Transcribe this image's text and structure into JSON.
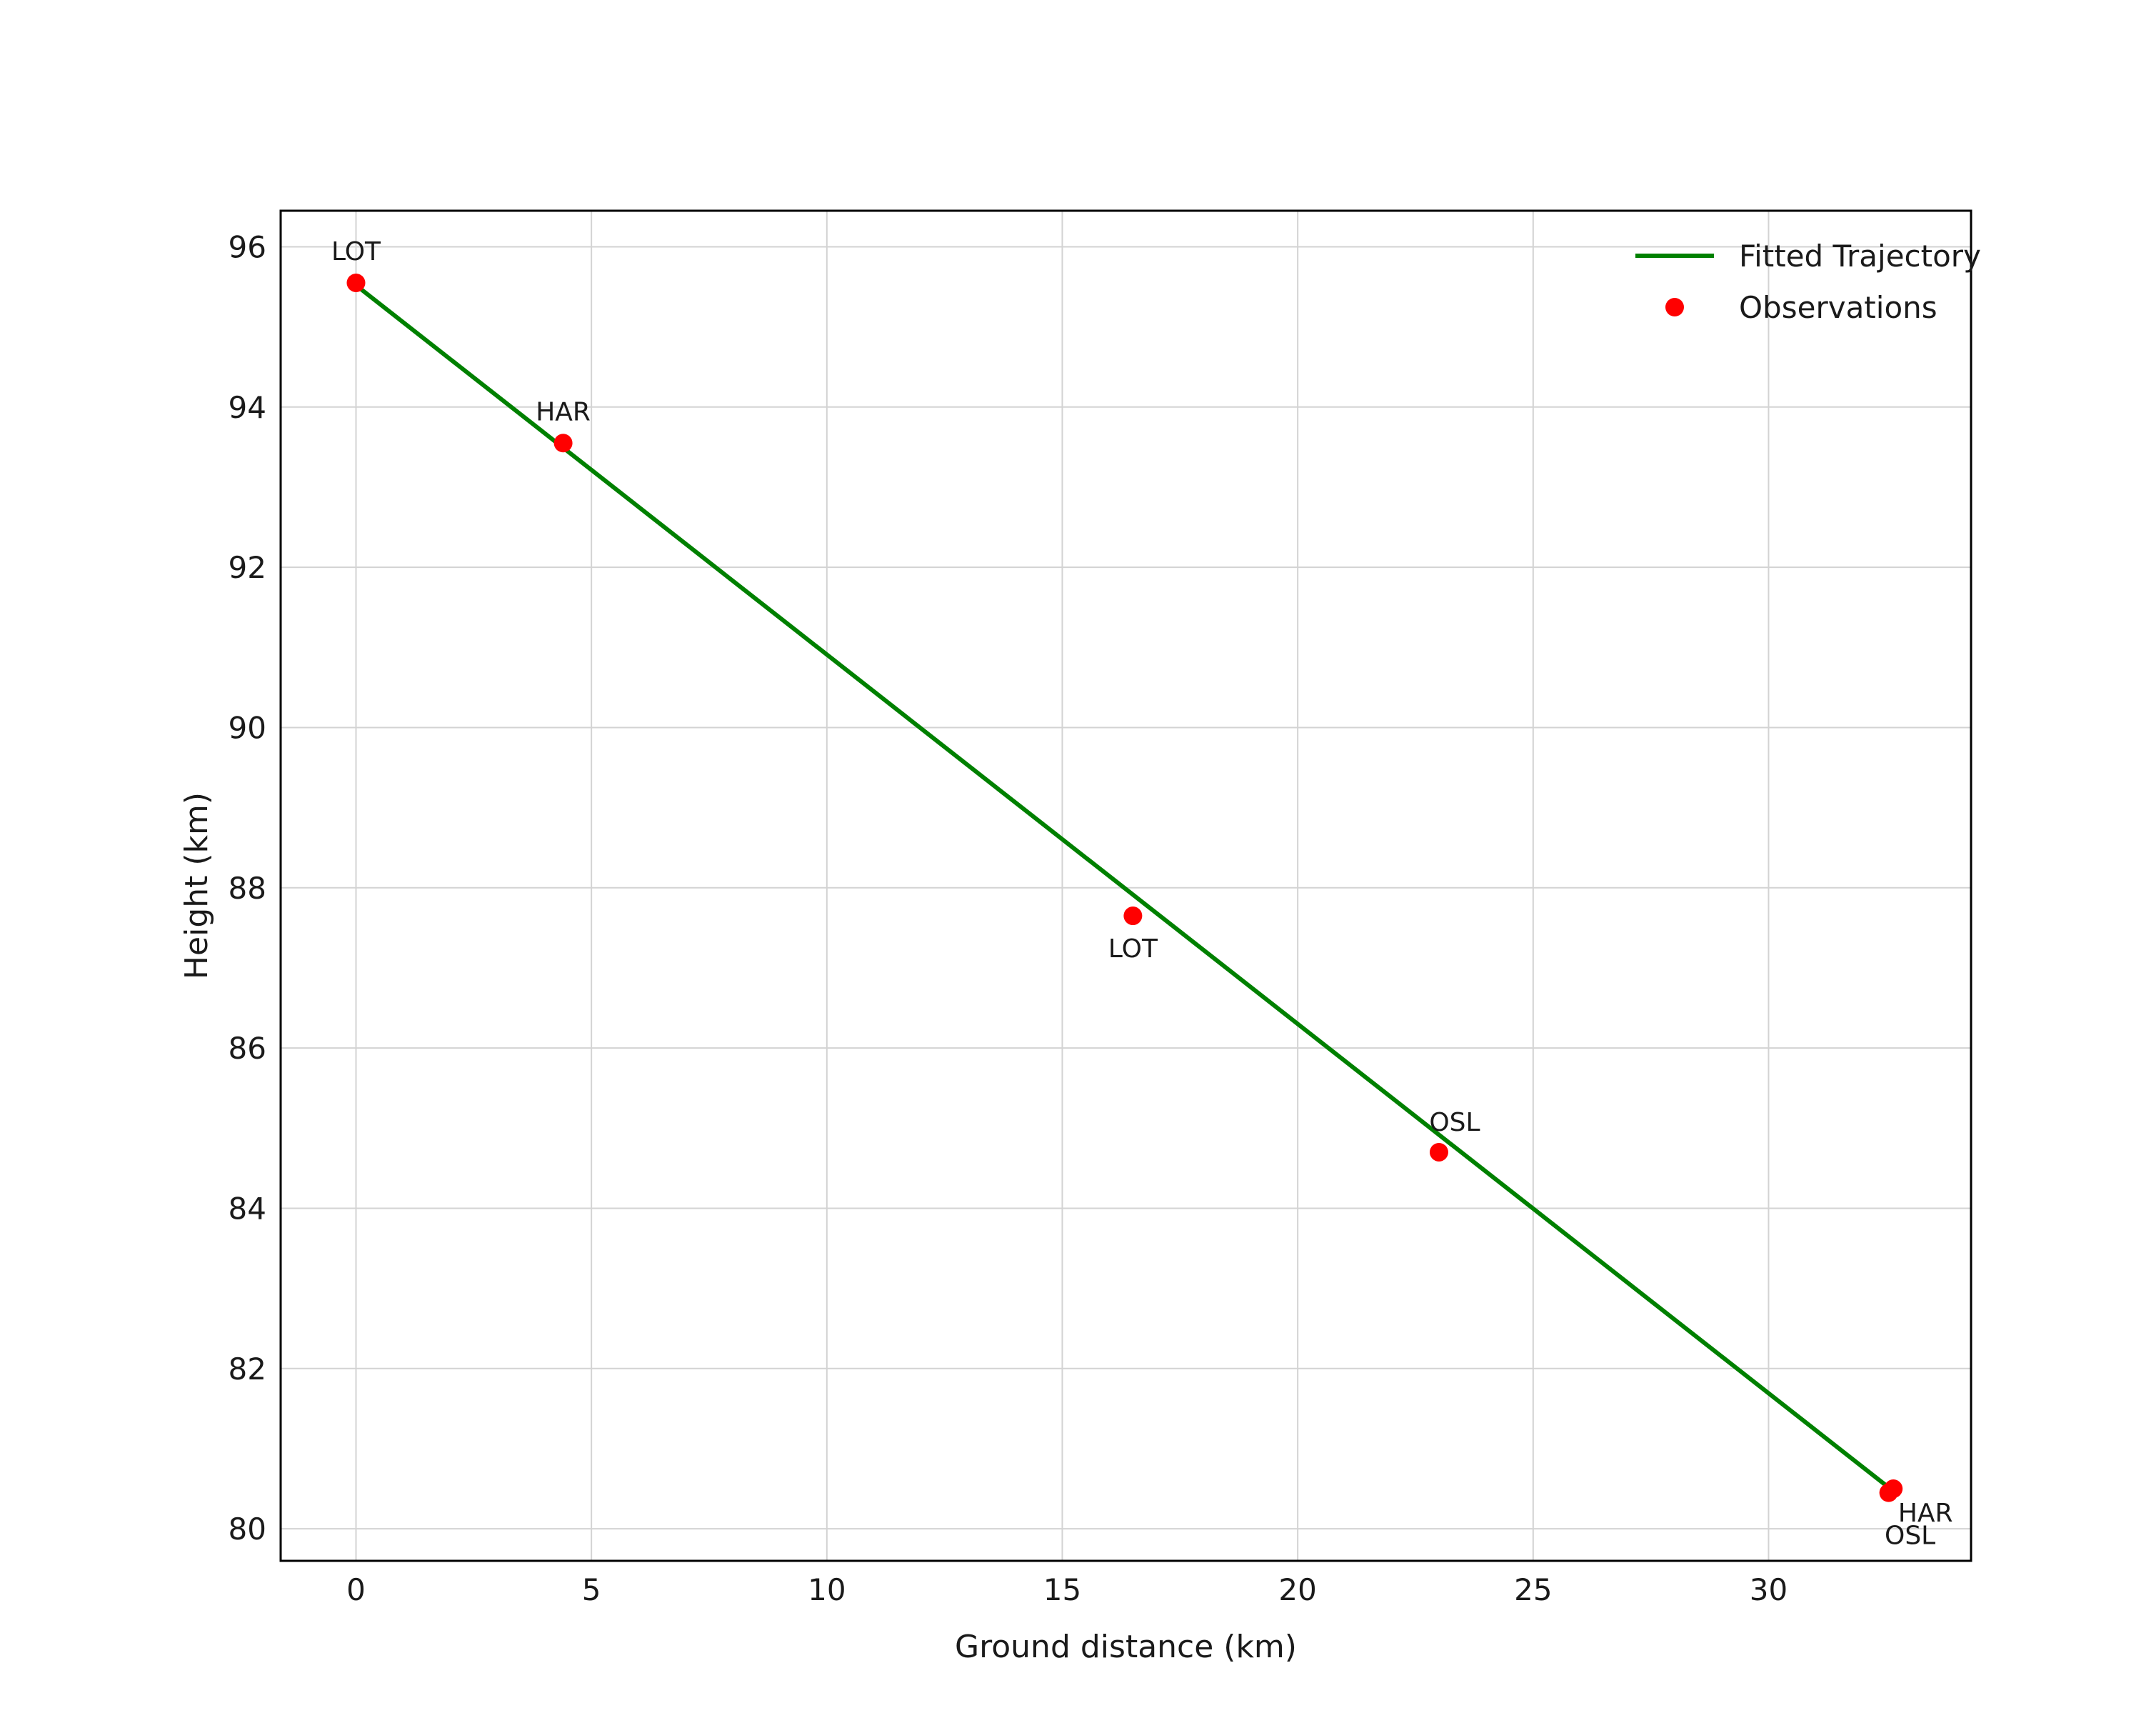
{
  "chart_data": {
    "type": "scatter",
    "title": "",
    "xlabel": "Ground distance (km)",
    "ylabel": "Height (km)",
    "xlim": [
      -1.6,
      34.3
    ],
    "ylim": [
      79.6,
      96.45
    ],
    "xticks": [
      0,
      5,
      10,
      15,
      20,
      25,
      30
    ],
    "yticks": [
      80,
      82,
      84,
      86,
      88,
      90,
      92,
      94,
      96
    ],
    "grid": true,
    "legend_position": "top-right",
    "colors": {
      "line": "#008000",
      "points": "#ff0000",
      "grid": "#d3d3d3",
      "frame": "#000000",
      "text": "#1a1a1a",
      "background": "#ffffff"
    },
    "legend": {
      "items": [
        {
          "label": "Fitted Trajectory",
          "type": "line",
          "color": "#008000"
        },
        {
          "label": "Observations",
          "type": "dot",
          "color": "#ff0000"
        }
      ]
    },
    "fit_line": {
      "x": [
        0,
        32.65
      ],
      "y": [
        95.52,
        80.47
      ]
    },
    "observations": [
      {
        "station": "LOT",
        "x": 0.0,
        "y": 95.55,
        "label_dx": 0,
        "label_dy": -32
      },
      {
        "station": "HAR",
        "x": 4.4,
        "y": 93.55,
        "label_dx": 0,
        "label_dy": -32
      },
      {
        "station": "LOT",
        "x": 16.5,
        "y": 87.65,
        "label_dx": 0,
        "label_dy": 58
      },
      {
        "station": "OSL",
        "x": 23.0,
        "y": 84.7,
        "label_dx": 22,
        "label_dy": -30
      },
      {
        "station": "HAR",
        "x": 32.65,
        "y": 80.5,
        "label_dx": 45,
        "label_dy": 46
      },
      {
        "station": "OSL",
        "x": 32.55,
        "y": 80.45,
        "label_dx": 30,
        "label_dy": 72
      }
    ]
  }
}
